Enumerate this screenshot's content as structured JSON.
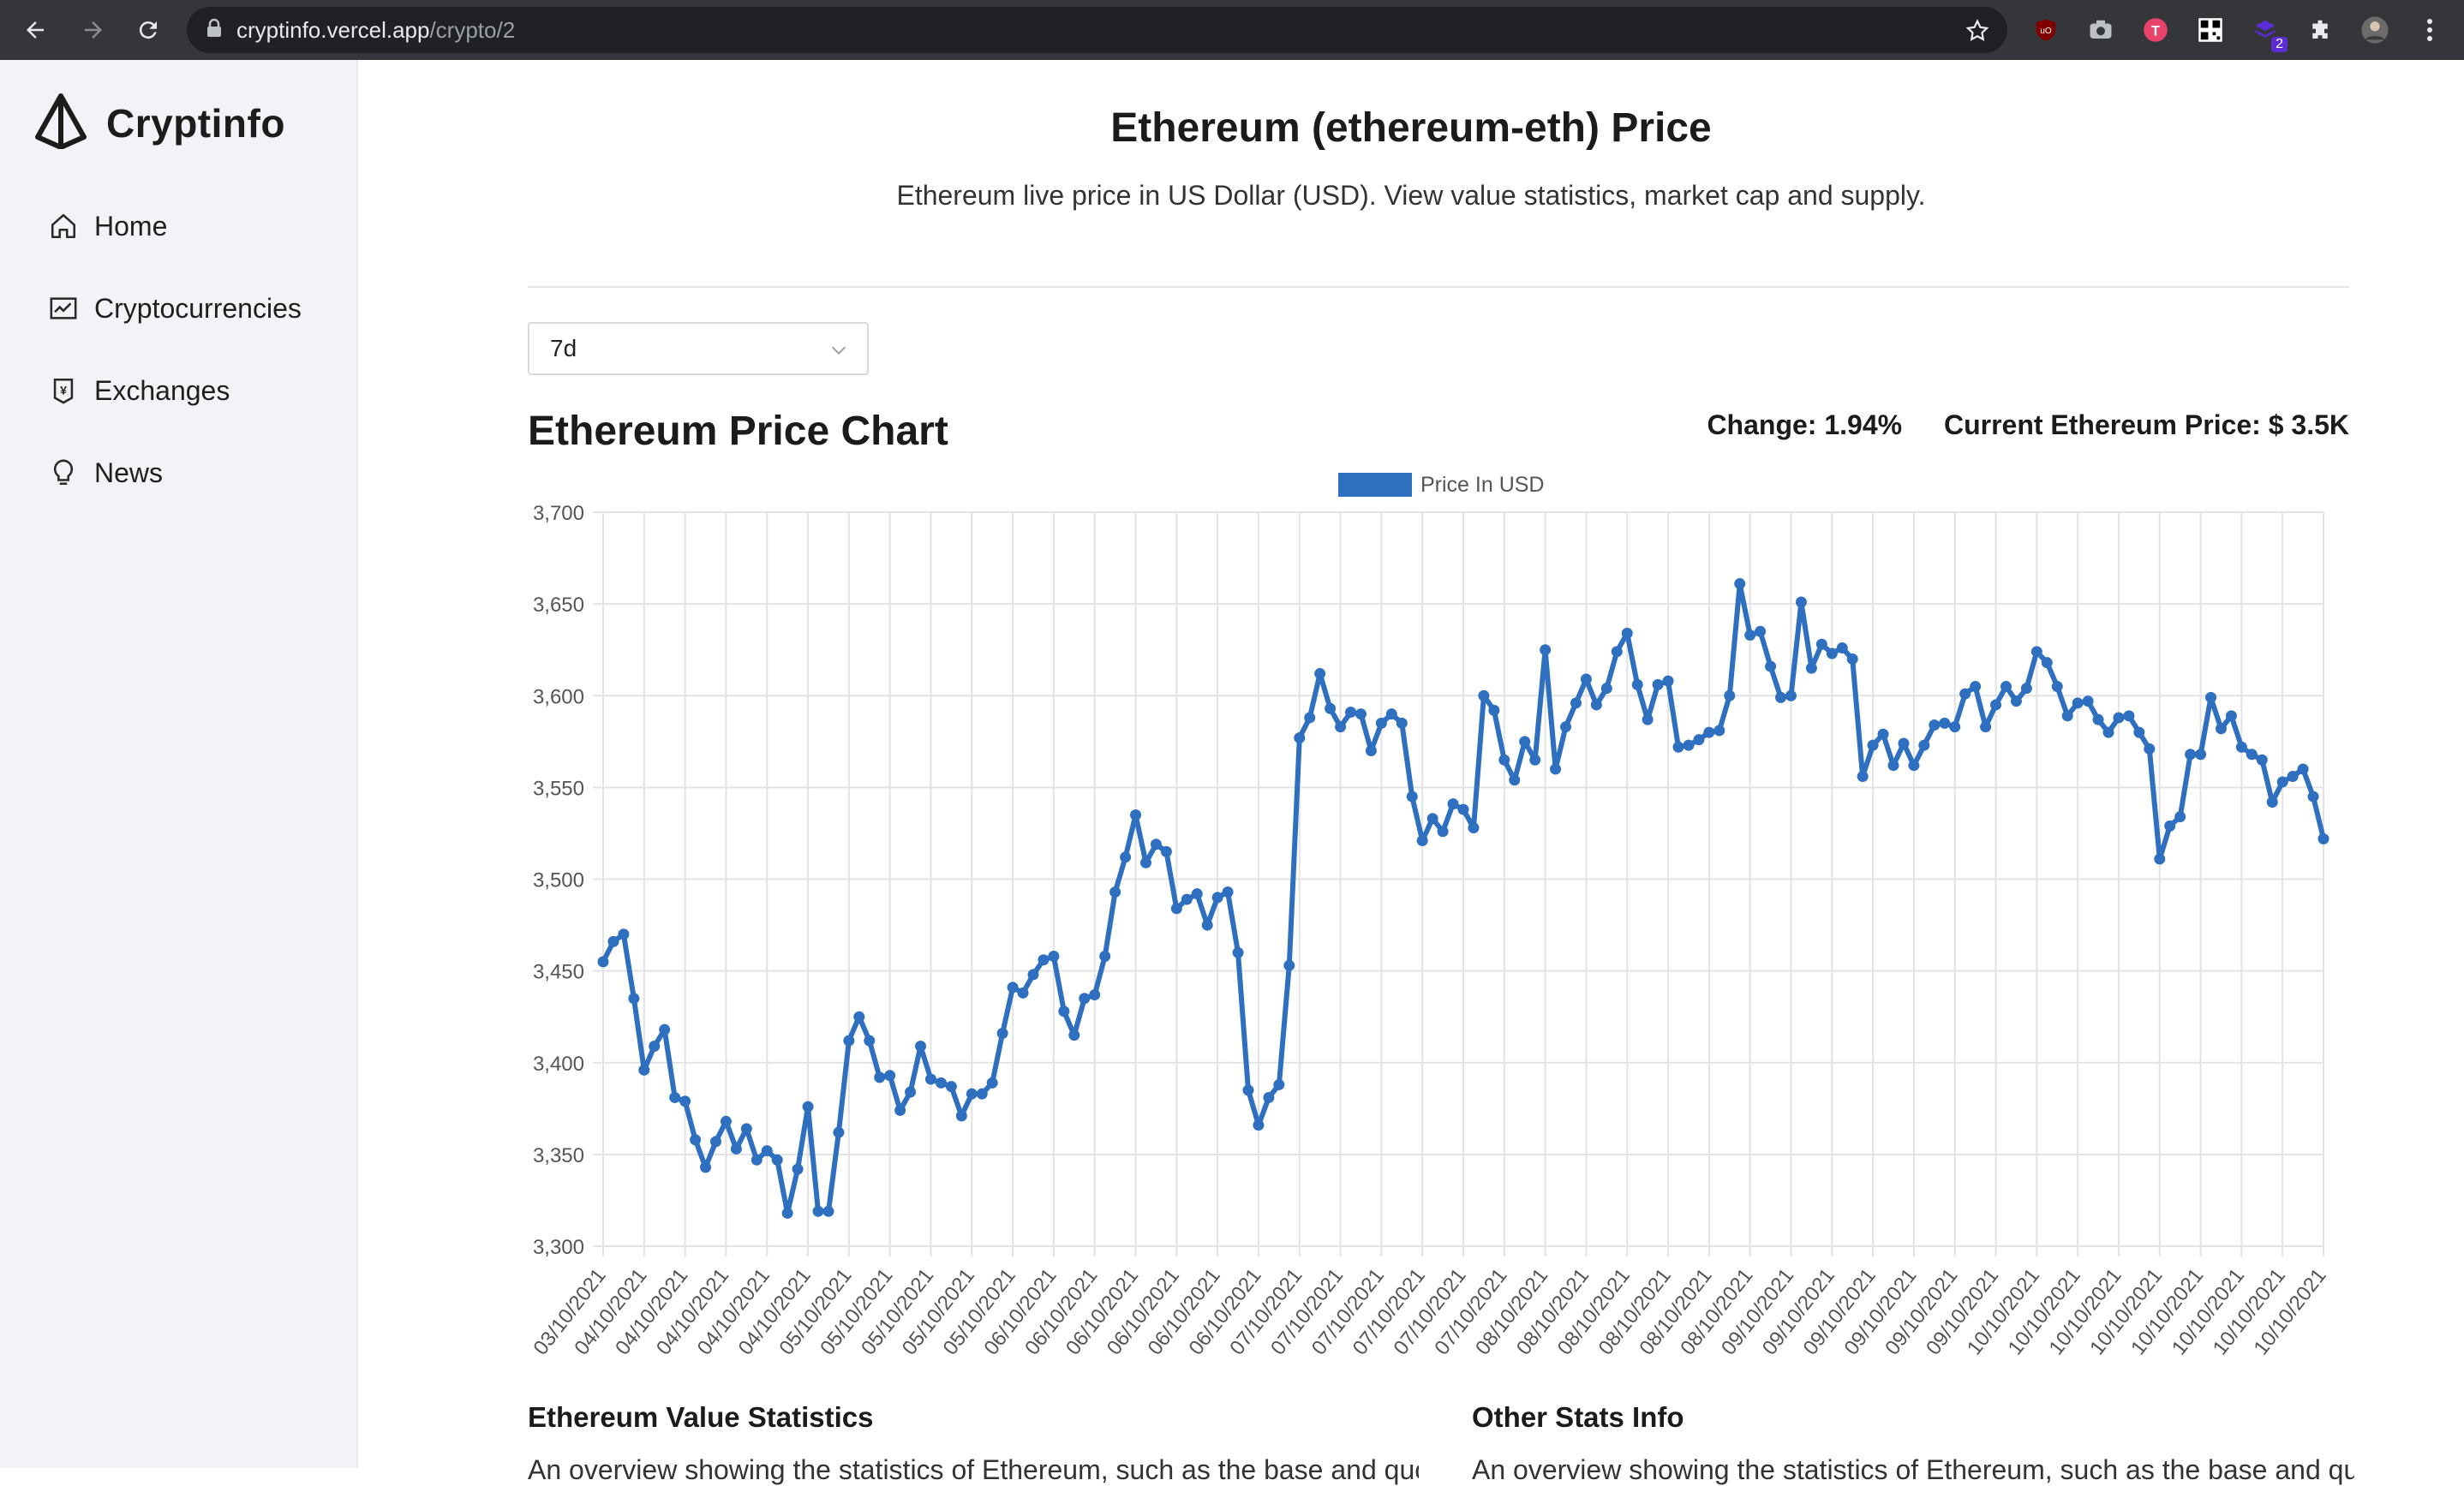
{
  "browser": {
    "url_host": "cryptinfo.vercel.app",
    "url_path": "/crypto/2",
    "extension_badge": "2"
  },
  "sidebar": {
    "brand": "Cryptinfo",
    "items": [
      {
        "label": "Home",
        "icon": "home-icon"
      },
      {
        "label": "Cryptocurrencies",
        "icon": "chart-icon"
      },
      {
        "label": "Exchanges",
        "icon": "money-collect-icon"
      },
      {
        "label": "News",
        "icon": "bulb-icon"
      }
    ]
  },
  "main": {
    "title": "Ethereum (ethereum-eth) Price",
    "subtitle": "Ethereum live price in US Dollar (USD). View value statistics, market cap and supply.",
    "period_selected": "7d",
    "chart_heading": "Ethereum Price Chart",
    "change_label": "Change: 1.94%",
    "current_price_label": "Current Ethereum Price: $ 3.5K",
    "stats_left_title": "Ethereum Value Statistics",
    "stats_right_title": "Other Stats Info",
    "stats_left_desc": "An overview showing the statistics of Ethereum, such as the base and quote currency...",
    "stats_right_desc": "An overview showing the statistics of Ethereum, such as the base and quote currency..."
  },
  "colors": {
    "line": "#2f6fbf",
    "grid": "#e3e3e3",
    "sidebar_bg": "#f1f3f6",
    "chrome_bg": "#35363a"
  },
  "chart_data": {
    "type": "line",
    "title": "",
    "legend": [
      "Price In USD"
    ],
    "legend_position": "top",
    "ylim": [
      3300,
      3700
    ],
    "yticks": [
      3300,
      3350,
      3400,
      3450,
      3500,
      3550,
      3600,
      3650,
      3700
    ],
    "ytick_labels": [
      "3,300",
      "3,350",
      "3,400",
      "3,450",
      "3,500",
      "3,550",
      "3,600",
      "3,650",
      "3,700"
    ],
    "xtick_labels": [
      "03/10/2021",
      "04/10/2021",
      "04/10/2021",
      "04/10/2021",
      "04/10/2021",
      "04/10/2021",
      "05/10/2021",
      "05/10/2021",
      "05/10/2021",
      "05/10/2021",
      "05/10/2021",
      "06/10/2021",
      "06/10/2021",
      "06/10/2021",
      "06/10/2021",
      "06/10/2021",
      "06/10/2021",
      "07/10/2021",
      "07/10/2021",
      "07/10/2021",
      "07/10/2021",
      "07/10/2021",
      "07/10/2021",
      "08/10/2021",
      "08/10/2021",
      "08/10/2021",
      "08/10/2021",
      "08/10/2021",
      "08/10/2021",
      "09/10/2021",
      "09/10/2021",
      "09/10/2021",
      "09/10/2021",
      "09/10/2021",
      "09/10/2021",
      "10/10/2021",
      "10/10/2021",
      "10/10/2021",
      "10/10/2021",
      "10/10/2021",
      "10/10/2021",
      "10/10/2021",
      "10/10/2021"
    ],
    "grid": true,
    "series": [
      {
        "name": "Price In USD",
        "values": [
          3455,
          3466,
          3470,
          3435,
          3396,
          3409,
          3418,
          3381,
          3379,
          3358,
          3343,
          3357,
          3368,
          3353,
          3364,
          3347,
          3352,
          3347,
          3318,
          3342,
          3376,
          3319,
          3319,
          3362,
          3412,
          3425,
          3412,
          3392,
          3393,
          3374,
          3384,
          3409,
          3391,
          3389,
          3387,
          3371,
          3383,
          3383,
          3389,
          3416,
          3441,
          3438,
          3448,
          3456,
          3458,
          3428,
          3415,
          3435,
          3437,
          3458,
          3493,
          3512,
          3535,
          3509,
          3519,
          3515,
          3484,
          3489,
          3492,
          3475,
          3490,
          3493,
          3460,
          3385,
          3366,
          3381,
          3388,
          3453,
          3577,
          3588,
          3612,
          3593,
          3583,
          3591,
          3590,
          3570,
          3585,
          3590,
          3585,
          3545,
          3521,
          3533,
          3526,
          3541,
          3538,
          3528,
          3600,
          3592,
          3565,
          3554,
          3575,
          3565,
          3625,
          3560,
          3583,
          3596,
          3609,
          3595,
          3604,
          3624,
          3634,
          3606,
          3587,
          3606,
          3608,
          3572,
          3573,
          3576,
          3580,
          3581,
          3600,
          3661,
          3633,
          3635,
          3616,
          3599,
          3600,
          3651,
          3615,
          3628,
          3623,
          3626,
          3620,
          3556,
          3573,
          3579,
          3562,
          3574,
          3562,
          3573,
          3584,
          3585,
          3583,
          3601,
          3605,
          3583,
          3595,
          3605,
          3597,
          3604,
          3624,
          3618,
          3605,
          3589,
          3596,
          3597,
          3587,
          3580,
          3588,
          3589,
          3580,
          3571,
          3511,
          3529,
          3534,
          3568,
          3568,
          3599,
          3582,
          3589,
          3572,
          3568,
          3565,
          3542,
          3553,
          3556,
          3560,
          3545,
          3522
        ]
      }
    ]
  }
}
